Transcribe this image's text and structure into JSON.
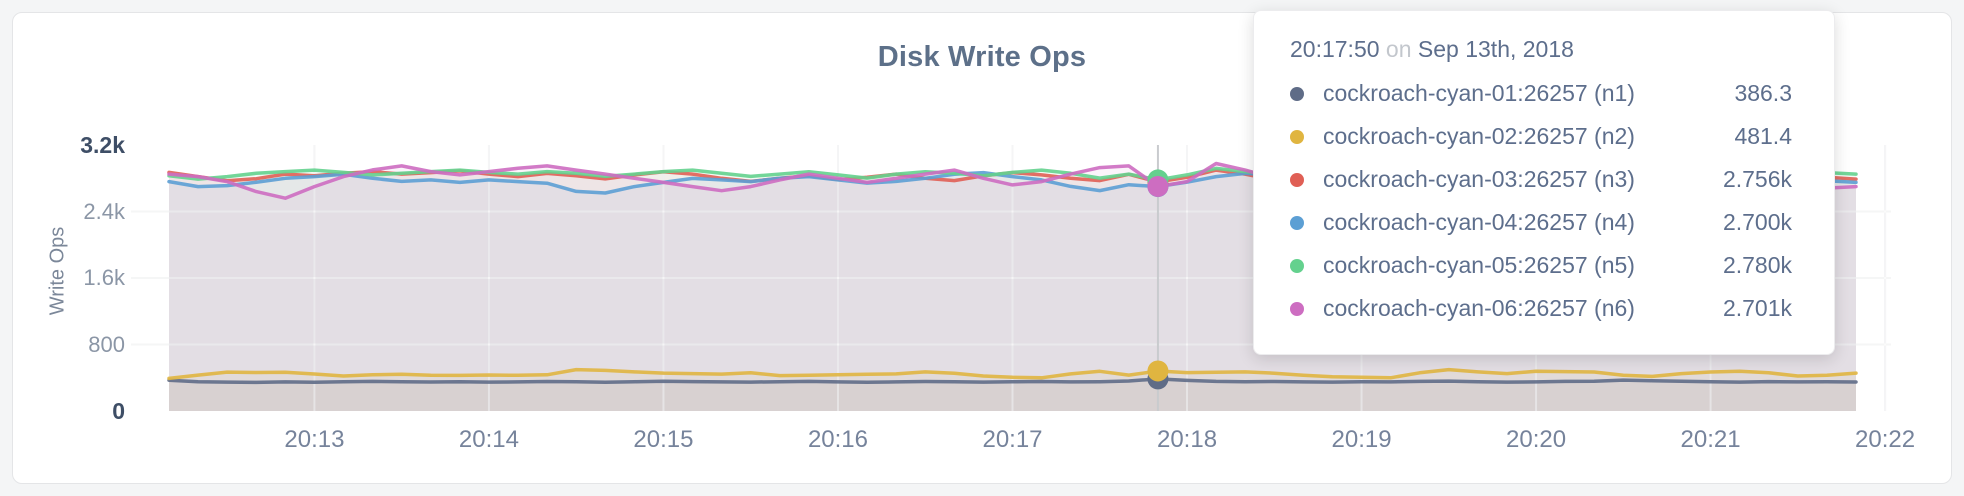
{
  "page": {
    "background": "#f4f5f6"
  },
  "card": {
    "background": "#ffffff",
    "border_color": "#e4e5e7"
  },
  "chart_data": {
    "type": "line",
    "title": "Disk Write Ops",
    "ylabel": "Write Ops",
    "ylim": [
      0,
      3200
    ],
    "grid": true,
    "legend_position": "tooltip",
    "y_ticks": [
      {
        "v": 0,
        "label": "0"
      },
      {
        "v": 800,
        "label": "800"
      },
      {
        "v": 1600,
        "label": "1.6k"
      },
      {
        "v": 2400,
        "label": "2.4k"
      },
      {
        "v": 3200,
        "label": "3.2k"
      }
    ],
    "x_start_time": "20:12:10",
    "x_step_seconds": 10,
    "x_span_seconds": 580,
    "x_ticks": [
      {
        "label": "20:13",
        "t": 50
      },
      {
        "label": "20:14",
        "t": 110
      },
      {
        "label": "20:15",
        "t": 170
      },
      {
        "label": "20:16",
        "t": 230
      },
      {
        "label": "20:17",
        "t": 290
      },
      {
        "label": "20:18",
        "t": 350
      },
      {
        "label": "20:19",
        "t": 410
      },
      {
        "label": "20:20",
        "t": 470
      },
      {
        "label": "20:21",
        "t": 530
      },
      {
        "label": "20:22",
        "t": 590
      }
    ],
    "hover": {
      "index": 34,
      "time": "20:17:50",
      "conjunction": "on",
      "date": "Sep 13th, 2018"
    },
    "series": [
      {
        "name": "cockroach-cyan-01:26257 (n1)",
        "color": "#5f6c87",
        "hover_display": "386.3",
        "values": [
          370,
          352,
          348,
          344,
          350,
          347,
          351,
          356,
          352,
          349,
          352,
          348,
          350,
          355,
          351,
          346,
          352,
          358,
          354,
          350,
          348,
          352,
          356,
          350,
          345,
          350,
          355,
          352,
          348,
          351,
          355,
          350,
          352,
          361,
          386.3,
          368,
          356,
          352,
          355,
          350,
          348,
          352,
          350,
          356,
          360,
          352,
          348,
          350,
          356,
          358,
          372,
          364,
          357,
          352,
          348,
          354,
          350,
          352,
          349
        ]
      },
      {
        "name": "cockroach-cyan-02:26257 (n2)",
        "color": "#e0b540",
        "hover_display": "481.4",
        "values": [
          392,
          432,
          468,
          463,
          466,
          445,
          421,
          436,
          441,
          430,
          428,
          433,
          430,
          436,
          498,
          488,
          470,
          456,
          450,
          444,
          460,
          426,
          431,
          436,
          441,
          446,
          470,
          455,
          421,
          406,
          400,
          446,
          478,
          432,
          481.4,
          462,
          466,
          470,
          455,
          430,
          411,
          405,
          400,
          460,
          498,
          470,
          450,
          479,
          474,
          469,
          431,
          416,
          450,
          469,
          479,
          459,
          421,
          431,
          456
        ]
      },
      {
        "name": "cockroach-cyan-03:26257 (n3)",
        "color": "#e05f55",
        "hover_display": "2.756k",
        "values": [
          2870,
          2820,
          2770,
          2795,
          2850,
          2830,
          2860,
          2880,
          2850,
          2868,
          2888,
          2850,
          2820,
          2858,
          2830,
          2792,
          2840,
          2878,
          2850,
          2800,
          2762,
          2800,
          2830,
          2782,
          2812,
          2850,
          2800,
          2772,
          2830,
          2868,
          2840,
          2800,
          2772,
          2848,
          2756,
          2812,
          2898,
          2850,
          2780,
          2820,
          2850,
          2800,
          2752,
          2712,
          2780,
          2830,
          2800,
          2762,
          2820,
          2858,
          2810,
          2772,
          2722,
          2762,
          2800,
          2830,
          2780,
          2812,
          2790
        ]
      },
      {
        "name": "cockroach-cyan-04:26257 (n4)",
        "color": "#5c9fd4",
        "hover_display": "2.700k",
        "values": [
          2760,
          2700,
          2712,
          2752,
          2800,
          2820,
          2848,
          2800,
          2762,
          2780,
          2750,
          2780,
          2760,
          2740,
          2642,
          2622,
          2700,
          2750,
          2798,
          2780,
          2760,
          2800,
          2820,
          2780,
          2742,
          2762,
          2800,
          2848,
          2868,
          2820,
          2780,
          2702,
          2652,
          2722,
          2700,
          2752,
          2820,
          2858,
          2840,
          2800,
          2760,
          2722,
          2682,
          2722,
          2780,
          2800,
          2760,
          2700,
          2662,
          2700,
          2750,
          2780,
          2740,
          2702,
          2722,
          2760,
          2798,
          2770,
          2750
        ]
      },
      {
        "name": "cockroach-cyan-05:26257 (n5)",
        "color": "#64d18e",
        "hover_display": "2.780k",
        "values": [
          2830,
          2790,
          2820,
          2860,
          2880,
          2898,
          2870,
          2840,
          2860,
          2880,
          2898,
          2870,
          2850,
          2880,
          2860,
          2822,
          2850,
          2880,
          2898,
          2860,
          2822,
          2850,
          2878,
          2840,
          2802,
          2850,
          2878,
          2860,
          2830,
          2870,
          2898,
          2860,
          2802,
          2850,
          2780,
          2840,
          2918,
          2880,
          2850,
          2870,
          2888,
          2850,
          2802,
          2762,
          2820,
          2870,
          2840,
          2800,
          2850,
          2888,
          2860,
          2812,
          2762,
          2800,
          2850,
          2878,
          2840,
          2868,
          2850
        ]
      },
      {
        "name": "cockroach-cyan-06:26257 (n6)",
        "color": "#cd6dc1",
        "hover_display": "2.701k",
        "values": [
          2850,
          2820,
          2760,
          2640,
          2560,
          2700,
          2820,
          2900,
          2948,
          2880,
          2840,
          2880,
          2920,
          2948,
          2898,
          2850,
          2800,
          2750,
          2700,
          2650,
          2700,
          2780,
          2850,
          2800,
          2750,
          2800,
          2850,
          2898,
          2800,
          2720,
          2760,
          2850,
          2928,
          2948,
          2701,
          2760,
          2978,
          2898,
          2800,
          2750,
          2700,
          2642,
          2562,
          2622,
          2760,
          2878,
          2820,
          2700,
          2602,
          2562,
          2622,
          2700,
          2780,
          2850,
          2898,
          2820,
          2742,
          2682,
          2700
        ]
      }
    ]
  }
}
